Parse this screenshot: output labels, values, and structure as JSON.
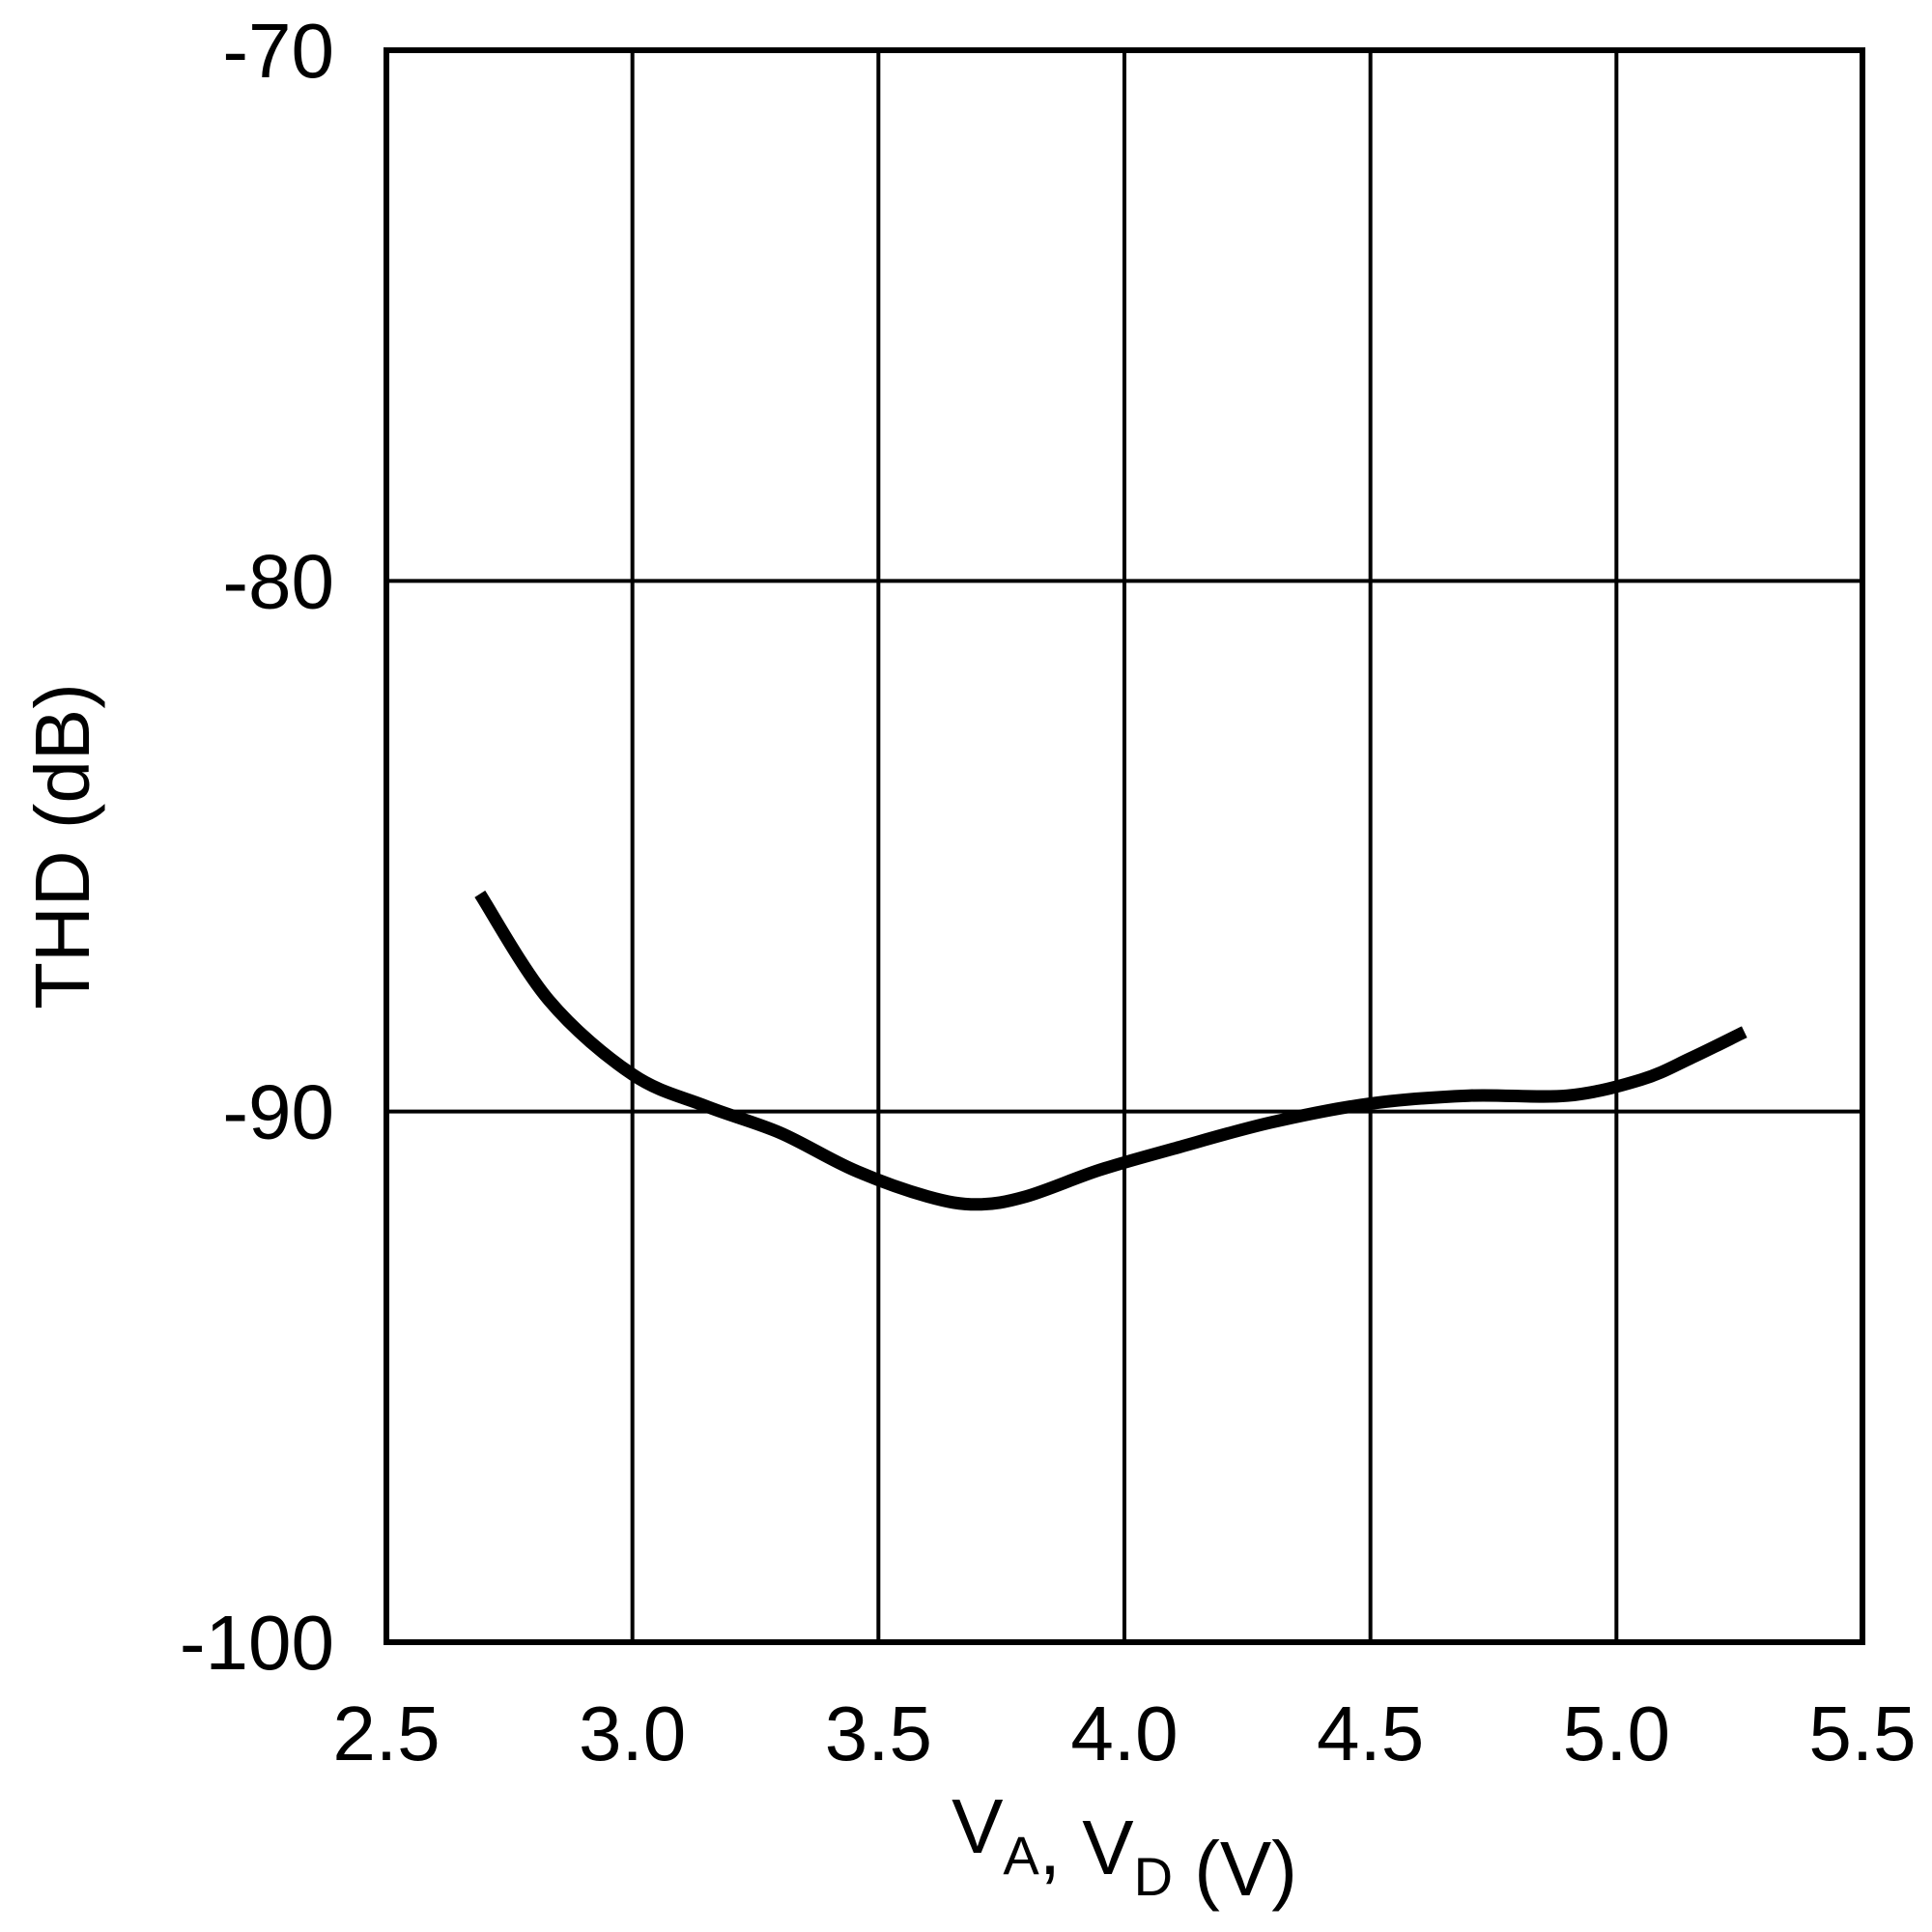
{
  "chart_data": {
    "type": "line",
    "title": "",
    "xlabel": {
      "parts": [
        {
          "text": "V",
          "sub": "A"
        },
        {
          "text": ", V",
          "sub": "D"
        },
        {
          "text": " (V)",
          "sub": ""
        }
      ]
    },
    "ylabel": "THD (dB)",
    "xlim": [
      2.5,
      5.5
    ],
    "ylim": [
      -100,
      -70
    ],
    "xticks": [
      2.5,
      3.0,
      3.5,
      4.0,
      4.5,
      5.0,
      5.5
    ],
    "xtick_labels": [
      "2.5",
      "3.0",
      "3.5",
      "4.0",
      "4.5",
      "5.0",
      "5.5"
    ],
    "yticks": [
      -100,
      -90,
      -80,
      -70
    ],
    "ytick_labels": [
      "-100",
      "-90",
      "-80",
      "-70"
    ],
    "grid": true,
    "legend": "none",
    "line_color": "#000000",
    "series": [
      {
        "x": [
          2.69,
          2.83,
          3.0,
          3.15,
          3.3,
          3.45,
          3.6,
          3.7,
          3.8,
          3.95,
          4.1,
          4.3,
          4.5,
          4.7,
          4.9,
          5.05,
          5.15,
          5.26
        ],
        "y": [
          -85.9,
          -87.9,
          -89.3,
          -89.9,
          -90.4,
          -91.1,
          -91.6,
          -91.75,
          -91.6,
          -91.1,
          -90.7,
          -90.2,
          -89.85,
          -89.7,
          -89.7,
          -89.4,
          -89.0,
          -88.5
        ]
      }
    ]
  }
}
